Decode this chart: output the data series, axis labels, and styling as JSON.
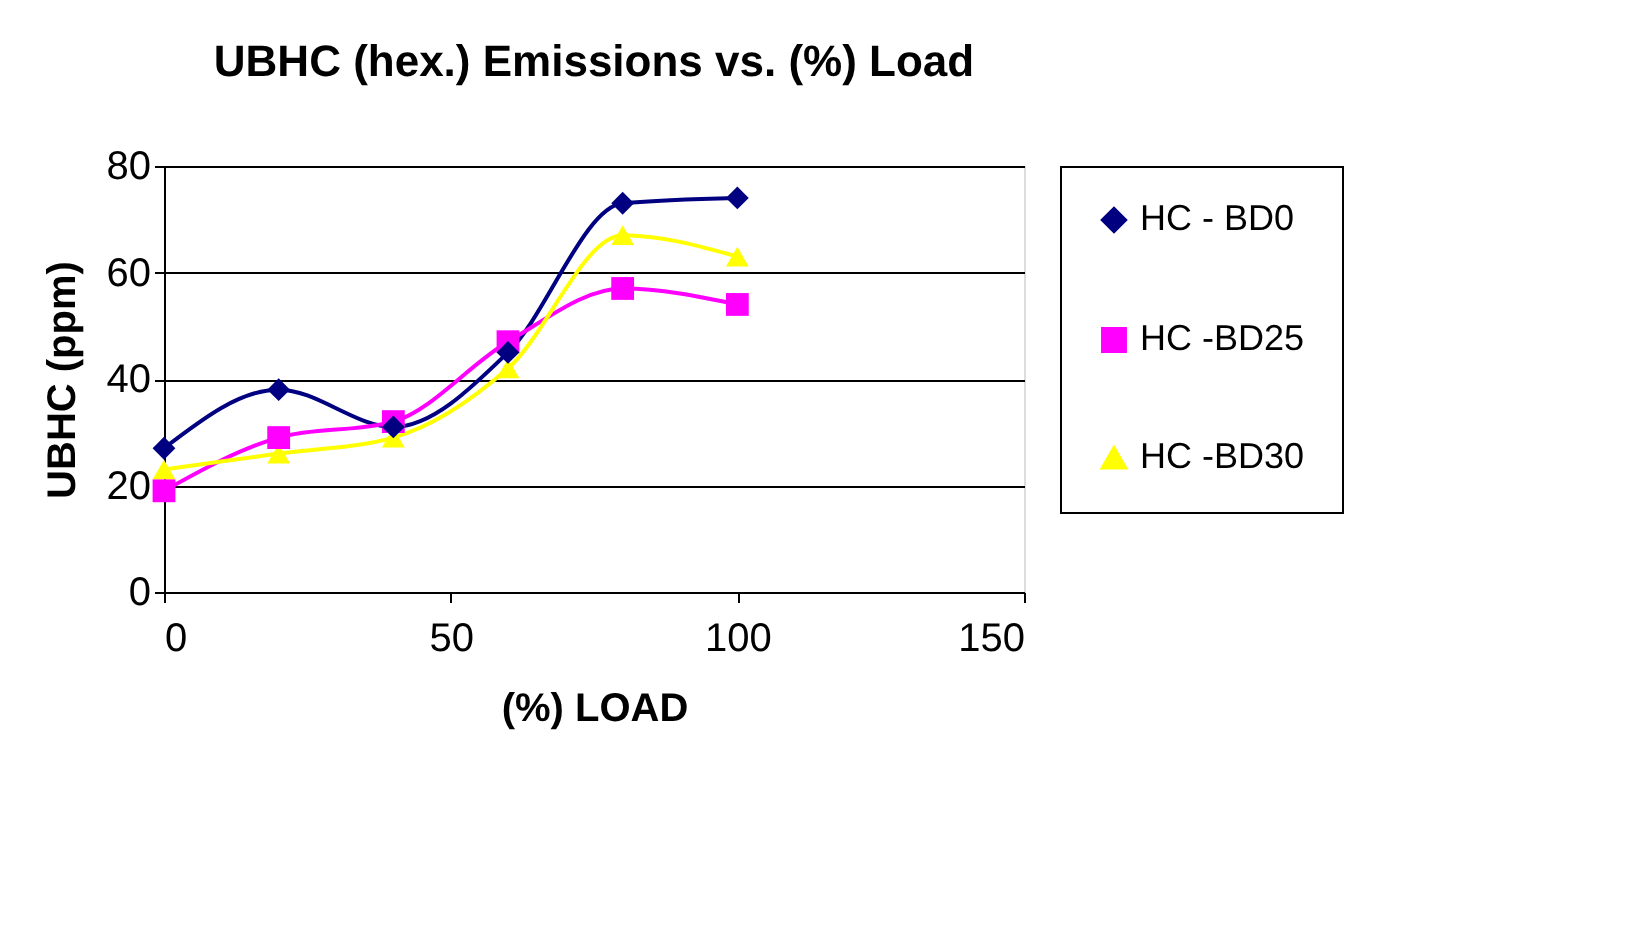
{
  "chart_data": {
    "type": "line",
    "title": "UBHC (hex.) Emissions vs. (%) Load",
    "xlabel": "(%) LOAD",
    "ylabel": "UBHC (ppm)",
    "x": [
      0,
      20,
      40,
      60,
      80,
      100
    ],
    "series": [
      {
        "name": "HC - BD0",
        "color": "#000080",
        "marker": "diamond",
        "values": [
          27,
          38,
          31,
          45,
          73,
          74
        ]
      },
      {
        "name": "HC -BD25",
        "color": "#ff00ff",
        "marker": "square",
        "values": [
          19,
          29,
          32,
          47,
          57,
          54
        ]
      },
      {
        "name": "HC -BD30",
        "color": "#ffff00",
        "marker": "triangle",
        "values": [
          23,
          26,
          29,
          42,
          67,
          63
        ]
      }
    ],
    "xlim": [
      0,
      150
    ],
    "xticks": [
      0,
      50,
      100,
      150
    ],
    "ylim": [
      0,
      80
    ],
    "yticks": [
      0,
      20,
      40,
      60,
      80
    ],
    "grid": "y",
    "legend": "right"
  }
}
